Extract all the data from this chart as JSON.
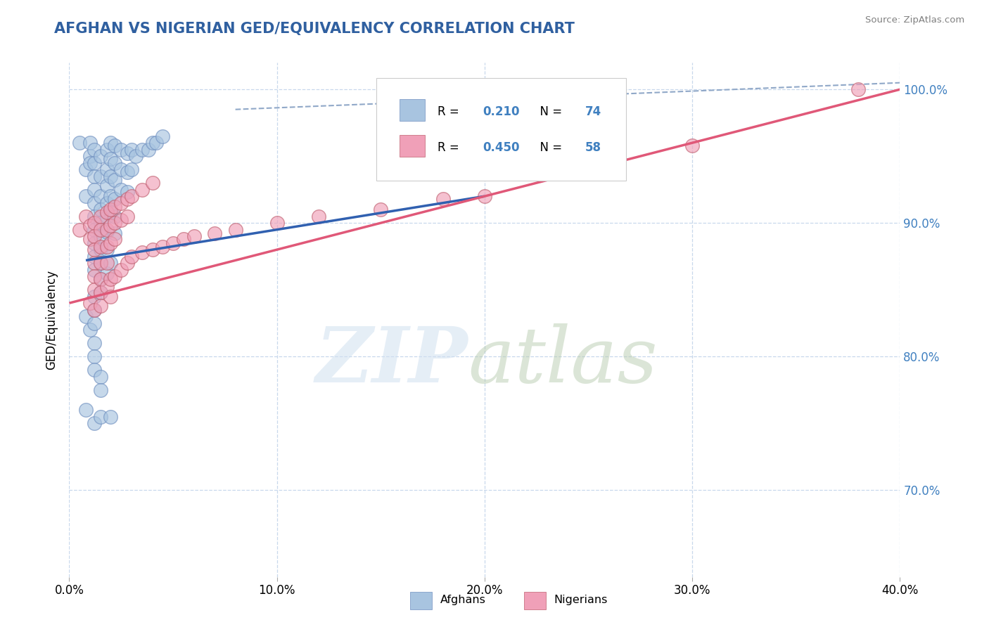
{
  "title": "AFGHAN VS NIGERIAN GED/EQUIVALENCY CORRELATION CHART",
  "source": "Source: ZipAtlas.com",
  "ylabel": "GED/Equivalency",
  "xlim": [
    0.0,
    0.4
  ],
  "ylim": [
    0.635,
    1.02
  ],
  "xtick_labels": [
    "0.0%",
    "10.0%",
    "20.0%",
    "30.0%",
    "40.0%"
  ],
  "xtick_values": [
    0.0,
    0.1,
    0.2,
    0.3,
    0.4
  ],
  "ytick_labels": [
    "70.0%",
    "80.0%",
    "90.0%",
    "100.0%"
  ],
  "ytick_values": [
    0.7,
    0.8,
    0.9,
    1.0
  ],
  "afghan_color": "#a8c4e0",
  "nigerian_color": "#f0a0b8",
  "afghan_line_color": "#3060b0",
  "nigerian_line_color": "#e05878",
  "dashed_line_color": "#90a8c8",
  "R_afghan": 0.21,
  "N_afghan": 74,
  "R_nigerian": 0.45,
  "N_nigerian": 58,
  "legend_label_afghan": "Afghans",
  "legend_label_nigerian": "Nigerians",
  "background_color": "#ffffff",
  "grid_color": "#c8d8ec",
  "title_color": "#3060a0",
  "source_color": "#808080",
  "right_ytick_color": "#4080c0",
  "afghan_scatter": [
    [
      0.005,
      0.96
    ],
    [
      0.008,
      0.94
    ],
    [
      0.008,
      0.92
    ],
    [
      0.01,
      0.96
    ],
    [
      0.01,
      0.95
    ],
    [
      0.01,
      0.945
    ],
    [
      0.012,
      0.955
    ],
    [
      0.012,
      0.945
    ],
    [
      0.012,
      0.935
    ],
    [
      0.012,
      0.925
    ],
    [
      0.012,
      0.915
    ],
    [
      0.012,
      0.905
    ],
    [
      0.012,
      0.895
    ],
    [
      0.012,
      0.885
    ],
    [
      0.012,
      0.875
    ],
    [
      0.012,
      0.865
    ],
    [
      0.015,
      0.95
    ],
    [
      0.015,
      0.935
    ],
    [
      0.015,
      0.92
    ],
    [
      0.015,
      0.91
    ],
    [
      0.015,
      0.9
    ],
    [
      0.015,
      0.89
    ],
    [
      0.015,
      0.88
    ],
    [
      0.015,
      0.87
    ],
    [
      0.018,
      0.955
    ],
    [
      0.018,
      0.94
    ],
    [
      0.018,
      0.928
    ],
    [
      0.018,
      0.915
    ],
    [
      0.018,
      0.905
    ],
    [
      0.018,
      0.893
    ],
    [
      0.018,
      0.88
    ],
    [
      0.02,
      0.96
    ],
    [
      0.02,
      0.948
    ],
    [
      0.02,
      0.935
    ],
    [
      0.02,
      0.92
    ],
    [
      0.02,
      0.908
    ],
    [
      0.022,
      0.958
    ],
    [
      0.022,
      0.945
    ],
    [
      0.022,
      0.932
    ],
    [
      0.022,
      0.918
    ],
    [
      0.022,
      0.905
    ],
    [
      0.022,
      0.892
    ],
    [
      0.025,
      0.955
    ],
    [
      0.025,
      0.94
    ],
    [
      0.025,
      0.925
    ],
    [
      0.028,
      0.952
    ],
    [
      0.028,
      0.938
    ],
    [
      0.028,
      0.923
    ],
    [
      0.03,
      0.955
    ],
    [
      0.03,
      0.94
    ],
    [
      0.032,
      0.95
    ],
    [
      0.035,
      0.955
    ],
    [
      0.038,
      0.955
    ],
    [
      0.04,
      0.96
    ],
    [
      0.042,
      0.96
    ],
    [
      0.045,
      0.965
    ],
    [
      0.008,
      0.83
    ],
    [
      0.01,
      0.82
    ],
    [
      0.012,
      0.845
    ],
    [
      0.012,
      0.835
    ],
    [
      0.012,
      0.825
    ],
    [
      0.015,
      0.858
    ],
    [
      0.015,
      0.848
    ],
    [
      0.018,
      0.862
    ],
    [
      0.02,
      0.87
    ],
    [
      0.012,
      0.81
    ],
    [
      0.012,
      0.8
    ],
    [
      0.012,
      0.79
    ],
    [
      0.015,
      0.785
    ],
    [
      0.015,
      0.775
    ],
    [
      0.008,
      0.76
    ],
    [
      0.012,
      0.75
    ],
    [
      0.015,
      0.755
    ],
    [
      0.02,
      0.755
    ]
  ],
  "nigerian_scatter": [
    [
      0.005,
      0.895
    ],
    [
      0.008,
      0.905
    ],
    [
      0.01,
      0.898
    ],
    [
      0.01,
      0.888
    ],
    [
      0.012,
      0.9
    ],
    [
      0.012,
      0.89
    ],
    [
      0.012,
      0.88
    ],
    [
      0.012,
      0.87
    ],
    [
      0.012,
      0.86
    ],
    [
      0.012,
      0.85
    ],
    [
      0.015,
      0.905
    ],
    [
      0.015,
      0.895
    ],
    [
      0.015,
      0.882
    ],
    [
      0.015,
      0.87
    ],
    [
      0.015,
      0.858
    ],
    [
      0.018,
      0.908
    ],
    [
      0.018,
      0.895
    ],
    [
      0.018,
      0.882
    ],
    [
      0.018,
      0.87
    ],
    [
      0.02,
      0.91
    ],
    [
      0.02,
      0.898
    ],
    [
      0.02,
      0.885
    ],
    [
      0.022,
      0.912
    ],
    [
      0.022,
      0.9
    ],
    [
      0.022,
      0.888
    ],
    [
      0.025,
      0.915
    ],
    [
      0.025,
      0.902
    ],
    [
      0.028,
      0.918
    ],
    [
      0.028,
      0.905
    ],
    [
      0.03,
      0.92
    ],
    [
      0.035,
      0.925
    ],
    [
      0.04,
      0.93
    ],
    [
      0.01,
      0.84
    ],
    [
      0.012,
      0.835
    ],
    [
      0.015,
      0.848
    ],
    [
      0.015,
      0.838
    ],
    [
      0.018,
      0.852
    ],
    [
      0.02,
      0.858
    ],
    [
      0.02,
      0.845
    ],
    [
      0.022,
      0.86
    ],
    [
      0.025,
      0.865
    ],
    [
      0.028,
      0.87
    ],
    [
      0.03,
      0.875
    ],
    [
      0.035,
      0.878
    ],
    [
      0.04,
      0.88
    ],
    [
      0.045,
      0.882
    ],
    [
      0.05,
      0.885
    ],
    [
      0.055,
      0.888
    ],
    [
      0.06,
      0.89
    ],
    [
      0.07,
      0.892
    ],
    [
      0.08,
      0.895
    ],
    [
      0.1,
      0.9
    ],
    [
      0.12,
      0.905
    ],
    [
      0.15,
      0.91
    ],
    [
      0.18,
      0.918
    ],
    [
      0.2,
      0.92
    ],
    [
      0.38,
      1.0
    ],
    [
      0.3,
      0.958
    ]
  ],
  "afghan_line_x": [
    0.008,
    0.2
  ],
  "afghan_line_y": [
    0.872,
    0.92
  ],
  "nigerian_line_x": [
    0.0,
    0.4
  ],
  "nigerian_line_y": [
    0.84,
    1.0
  ],
  "dashed_line_x": [
    0.08,
    0.4
  ],
  "dashed_line_y": [
    0.985,
    1.005
  ]
}
